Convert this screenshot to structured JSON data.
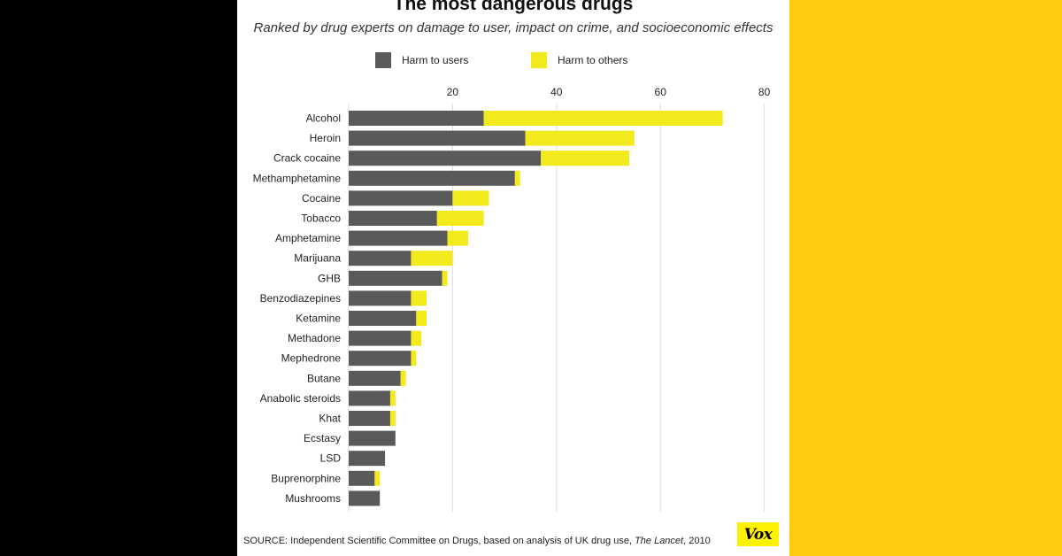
{
  "colors": {
    "harm_users": "#5A5A5A",
    "harm_others": "#F2EA1C",
    "background_right": "#FFCB0F",
    "background_left": "#000000",
    "logo_bg": "#FFF200"
  },
  "chart_data": {
    "type": "bar",
    "orientation": "horizontal",
    "stacked": true,
    "title": "The most dangerous drugs",
    "subtitle": "Ranked by drug experts on damage to user, impact on crime, and socioeconomic effects",
    "categories": [
      "Alcohol",
      "Heroin",
      "Crack cocaine",
      "Methamphetamine",
      "Cocaine",
      "Tobacco",
      "Amphetamine",
      "Marijuana",
      "GHB",
      "Benzodiazepines",
      "Ketamine",
      "Methadone",
      "Mephedrone",
      "Butane",
      "Anabolic steroids",
      "Khat",
      "Ecstasy",
      "LSD",
      "Buprenorphine",
      "Mushrooms"
    ],
    "series": [
      {
        "name": "Harm to users",
        "values": [
          26,
          34,
          37,
          32,
          20,
          17,
          19,
          12,
          18,
          12,
          13,
          12,
          12,
          10,
          8,
          8,
          9,
          7,
          5,
          6
        ]
      },
      {
        "name": "Harm to others",
        "values": [
          46,
          21,
          17,
          1,
          7,
          9,
          4,
          8,
          1,
          3,
          2,
          2,
          1,
          1,
          1,
          1,
          0,
          0,
          1,
          0
        ]
      }
    ],
    "x_ticks": [
      20,
      40,
      60,
      80
    ],
    "xlim": [
      0,
      80
    ],
    "grid": true,
    "legend_position": "top"
  },
  "legend": {
    "users_label": "Harm to users",
    "others_label": "Harm to others"
  },
  "source": {
    "prefix": "SOURCE: Independent Scientific Committee on Drugs, based on analysis of UK drug use, ",
    "publication": "The Lancet",
    "suffix": ", 2010"
  },
  "logo": {
    "text": "Vox"
  }
}
